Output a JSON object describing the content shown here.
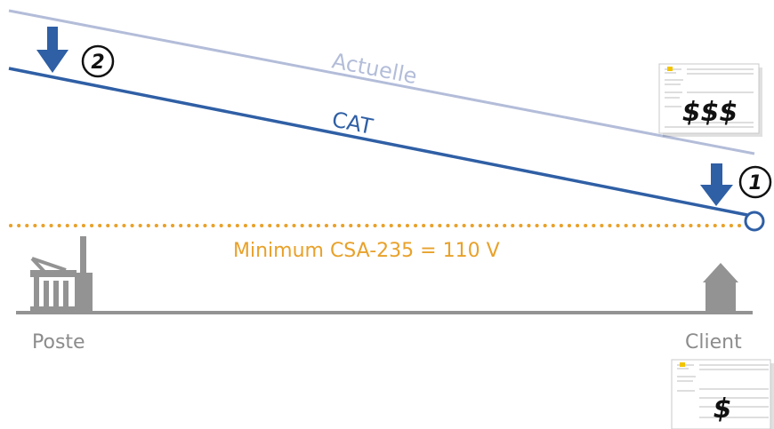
{
  "diagram": {
    "lines": {
      "current": {
        "label": "Actuelle",
        "color": "#b3bdd9"
      },
      "cat": {
        "label": "CAT",
        "color": "#2f5fa5"
      }
    },
    "minimum": {
      "label": "Minimum CSA-235 = 110 V",
      "color": "#e8a12a"
    },
    "ground": {
      "color": "#939393"
    },
    "markers": {
      "one": "1",
      "two": "2"
    },
    "arrows_color": "#2f5fa5",
    "places": {
      "left": "Poste",
      "right": "Client"
    },
    "bills": {
      "high": {
        "label": "$$$"
      },
      "low": {
        "label": "$"
      }
    }
  }
}
